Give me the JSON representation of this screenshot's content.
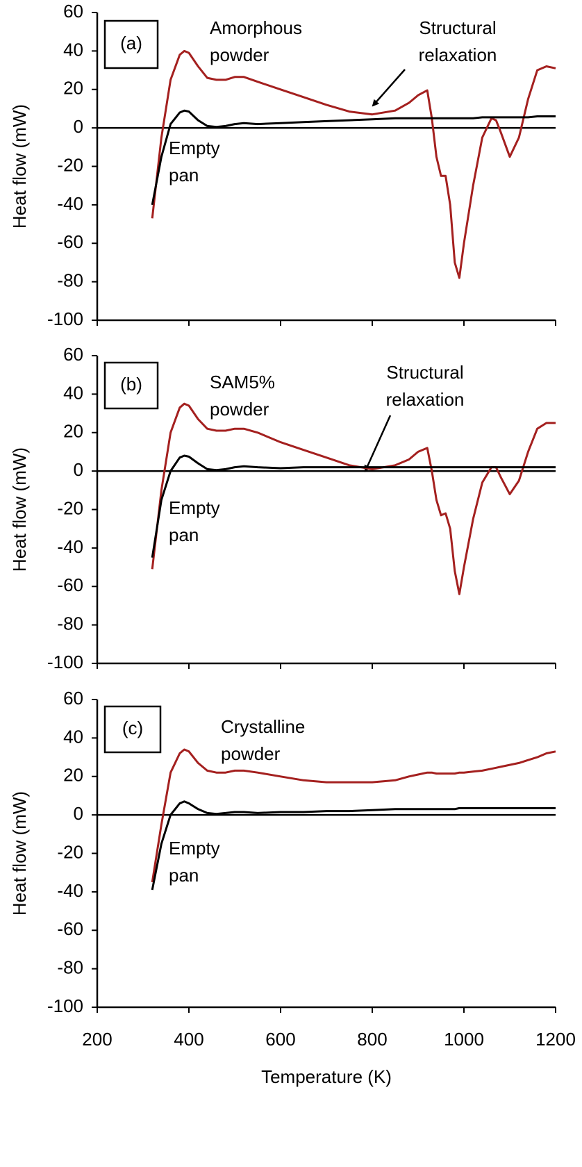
{
  "chart_data": [
    {
      "type": "line",
      "panel_label": "(a)",
      "y_label": "Heat flow (mW)",
      "annotations": [
        {
          "lines": [
            "Amorphous",
            "powder"
          ]
        },
        {
          "lines": [
            "Structural",
            "relaxation"
          ]
        },
        {
          "lines": [
            "Empty",
            "pan"
          ]
        }
      ],
      "x": [
        320,
        340,
        360,
        380,
        390,
        400,
        420,
        440,
        460,
        480,
        500,
        520,
        550,
        600,
        650,
        700,
        750,
        800,
        850,
        880,
        900,
        920,
        930,
        940,
        950,
        960,
        970,
        980,
        990,
        1000,
        1020,
        1040,
        1060,
        1070,
        1080,
        1100,
        1120,
        1140,
        1160,
        1180,
        1200
      ],
      "series": [
        {
          "color": "#a4201f",
          "values": [
            -47,
            -5,
            25,
            38,
            40,
            39,
            32,
            26,
            25,
            25,
            26.5,
            26.5,
            24,
            20,
            16,
            12,
            8.5,
            7,
            9,
            13,
            17,
            19.5,
            5,
            -15,
            -25,
            -25,
            -40,
            -70,
            -78,
            -60,
            -30,
            -5,
            5,
            4,
            -2,
            -15,
            -5,
            15,
            30,
            32,
            31
          ]
        },
        {
          "color": "#000000",
          "values": [
            -40,
            -15,
            2,
            8,
            9,
            8.5,
            4,
            1,
            0.5,
            1,
            2,
            2.5,
            2,
            2.5,
            3,
            3.5,
            4,
            4.5,
            5,
            5,
            5,
            5,
            5,
            5,
            5,
            5,
            5,
            5,
            5,
            5,
            5,
            5.5,
            5.5,
            5.5,
            5.5,
            5.5,
            5.5,
            5.5,
            6,
            6,
            6
          ]
        }
      ],
      "xlim": [
        200,
        1200
      ],
      "xticks": [
        200,
        400,
        600,
        800,
        1000,
        1200
      ],
      "show_xtick_labels": false,
      "ylim": [
        -100,
        60
      ],
      "yticks": [
        -100,
        -80,
        -60,
        -40,
        -20,
        0,
        20,
        40,
        60
      ]
    },
    {
      "type": "line",
      "panel_label": "(b)",
      "y_label": "Heat flow (mW)",
      "annotations": [
        {
          "lines": [
            "SAM5%",
            "powder"
          ]
        },
        {
          "lines": [
            "Structural",
            "relaxation"
          ]
        },
        {
          "lines": [
            "Empty",
            "pan"
          ]
        }
      ],
      "x": [
        320,
        340,
        360,
        380,
        390,
        400,
        420,
        440,
        460,
        480,
        500,
        520,
        550,
        600,
        650,
        700,
        750,
        800,
        850,
        880,
        900,
        920,
        930,
        940,
        950,
        960,
        970,
        980,
        990,
        1000,
        1020,
        1040,
        1060,
        1070,
        1080,
        1100,
        1120,
        1140,
        1160,
        1180,
        1200
      ],
      "series": [
        {
          "color": "#a4201f",
          "values": [
            -51,
            -10,
            20,
            33,
            35,
            34,
            27,
            22,
            21,
            21,
            22,
            22,
            20,
            15,
            11,
            7,
            3,
            1,
            3,
            6,
            10,
            12,
            0,
            -15,
            -23,
            -22,
            -30,
            -52,
            -64,
            -50,
            -25,
            -6,
            2,
            2,
            -3,
            -12,
            -5,
            10,
            22,
            25,
            25
          ]
        },
        {
          "color": "#000000",
          "values": [
            -45,
            -15,
            0,
            7,
            8,
            7.5,
            4,
            1,
            0.5,
            1,
            2,
            2.5,
            2,
            1.5,
            2,
            2,
            2,
            2,
            2,
            2,
            2,
            2,
            2,
            2,
            2,
            2,
            2,
            2,
            2,
            2,
            2,
            2,
            2,
            2,
            2,
            2,
            2,
            2,
            2,
            2,
            2
          ]
        }
      ],
      "xlim": [
        200,
        1200
      ],
      "xticks": [
        200,
        400,
        600,
        800,
        1000,
        1200
      ],
      "show_xtick_labels": false,
      "ylim": [
        -100,
        60
      ],
      "yticks": [
        -100,
        -80,
        -60,
        -40,
        -20,
        0,
        20,
        40,
        60
      ]
    },
    {
      "type": "line",
      "panel_label": "(c)",
      "y_label": "Heat flow (mW)",
      "x_label": "Temperature (K)",
      "annotations": [
        {
          "lines": [
            "Crystalline",
            "powder"
          ]
        },
        {
          "lines": [
            "Empty",
            "pan"
          ]
        }
      ],
      "x": [
        320,
        340,
        360,
        380,
        390,
        400,
        420,
        440,
        460,
        480,
        500,
        520,
        550,
        600,
        650,
        700,
        750,
        800,
        850,
        880,
        900,
        920,
        930,
        940,
        950,
        960,
        970,
        980,
        990,
        1000,
        1020,
        1040,
        1060,
        1070,
        1080,
        1100,
        1120,
        1140,
        1160,
        1180,
        1200
      ],
      "series": [
        {
          "color": "#a4201f",
          "values": [
            -35,
            -5,
            22,
            32,
            34,
            33,
            27,
            23,
            22,
            22,
            23,
            23,
            22,
            20,
            18,
            17,
            17,
            17,
            18,
            20,
            21,
            22,
            22,
            21.5,
            21.5,
            21.5,
            21.5,
            21.5,
            22,
            22,
            22.5,
            23,
            24,
            24.5,
            25,
            26,
            27,
            28.5,
            30,
            32,
            33
          ]
        },
        {
          "color": "#000000",
          "values": [
            -39,
            -15,
            0,
            6,
            7,
            6,
            3,
            1,
            0.5,
            1,
            1.5,
            1.5,
            1,
            1.5,
            1.5,
            2,
            2,
            2.5,
            3,
            3,
            3,
            3,
            3,
            3,
            3,
            3,
            3,
            3,
            3.5,
            3.5,
            3.5,
            3.5,
            3.5,
            3.5,
            3.5,
            3.5,
            3.5,
            3.5,
            3.5,
            3.5,
            3.5
          ]
        }
      ],
      "xlim": [
        200,
        1200
      ],
      "xticks": [
        200,
        400,
        600,
        800,
        1000,
        1200
      ],
      "show_xtick_labels": true,
      "ylim": [
        -100,
        60
      ],
      "yticks": [
        -100,
        -80,
        -60,
        -40,
        -20,
        0,
        20,
        40,
        60
      ]
    }
  ]
}
